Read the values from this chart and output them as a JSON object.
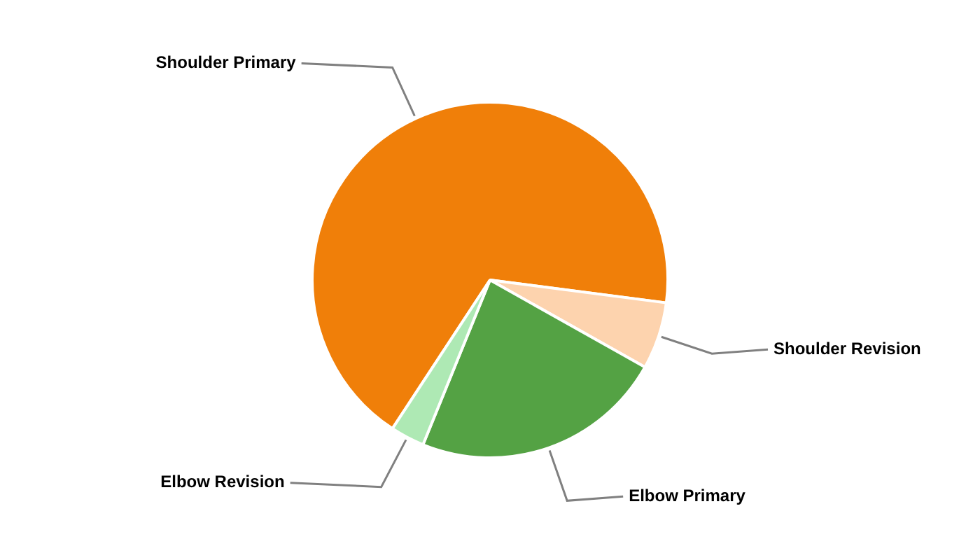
{
  "chart_data": {
    "type": "pie",
    "categories": [
      "Shoulder Primary",
      "Shoulder Revision",
      "Elbow Primary",
      "Elbow Revision"
    ],
    "values": [
      67.8,
      6.1,
      23.0,
      3.1
    ],
    "colors": [
      "#f07f09",
      "#fdd3ae",
      "#54a244",
      "#aee9b4"
    ],
    "legend": false
  }
}
